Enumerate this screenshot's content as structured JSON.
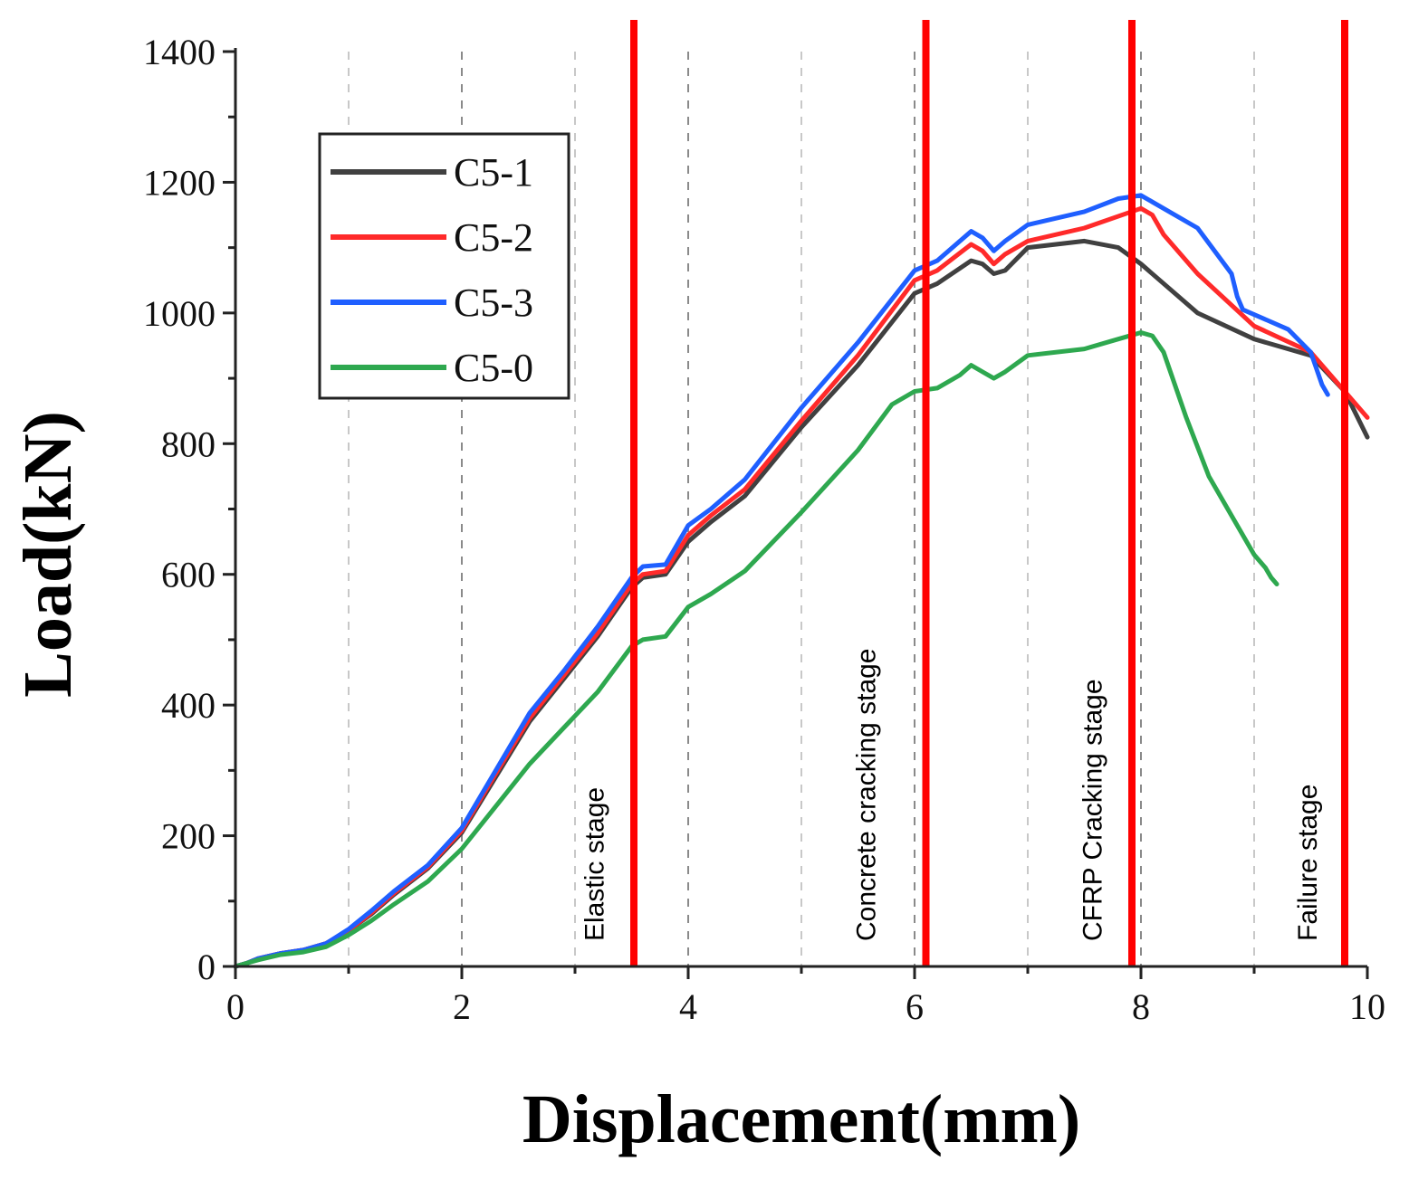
{
  "chart_data": {
    "type": "line",
    "xlabel": "Displacement(mm)",
    "ylabel": "Load(kN)",
    "xlim": [
      0,
      10
    ],
    "ylim": [
      0,
      1400
    ],
    "x_ticks": [
      "0",
      "2",
      "4",
      "6",
      "8",
      "10"
    ],
    "y_ticks": [
      "0",
      "200",
      "400",
      "600",
      "800",
      "1000",
      "1200",
      "1400"
    ],
    "grid": "vertical dashed",
    "legend_position": "top-left",
    "stage_lines": [
      {
        "x": 3.52,
        "label": "Elastic stage",
        "label_x": 3.25,
        "color": "#ff0000"
      },
      {
        "x": 6.1,
        "label": "Concrete cracking stage",
        "label_x": 5.65,
        "color": "#ff0000"
      },
      {
        "x": 7.92,
        "label": "CFRP Cracking stage",
        "label_x": 7.65,
        "color": "#ff0000"
      },
      {
        "x": 9.8,
        "label": "Failure stage",
        "label_x": 9.55,
        "color": "#ff0000"
      }
    ],
    "series": [
      {
        "name": "C5-1",
        "color": "#404040",
        "x": [
          0,
          0.1,
          0.2,
          0.4,
          0.6,
          0.8,
          1.0,
          1.2,
          1.4,
          1.7,
          2.0,
          2.3,
          2.6,
          2.9,
          3.2,
          3.5,
          3.6,
          3.8,
          4.0,
          4.2,
          4.5,
          5.0,
          5.5,
          6.0,
          6.2,
          6.5,
          6.6,
          6.7,
          6.8,
          7.0,
          7.5,
          7.8,
          8.0,
          8.5,
          9.0,
          9.5,
          9.8,
          10.0
        ],
        "y": [
          0,
          5,
          12,
          20,
          25,
          35,
          55,
          80,
          110,
          150,
          205,
          290,
          375,
          440,
          505,
          580,
          595,
          600,
          650,
          680,
          720,
          825,
          920,
          1030,
          1045,
          1080,
          1075,
          1060,
          1065,
          1100,
          1110,
          1100,
          1075,
          1000,
          960,
          935,
          880,
          810
        ]
      },
      {
        "name": "C5-2",
        "color": "#ff2a2a",
        "x": [
          0,
          0.1,
          0.2,
          0.4,
          0.6,
          0.8,
          1.0,
          1.2,
          1.4,
          1.7,
          2.0,
          2.3,
          2.6,
          2.9,
          3.2,
          3.5,
          3.6,
          3.8,
          4.0,
          4.2,
          4.5,
          5.0,
          5.5,
          6.0,
          6.2,
          6.5,
          6.6,
          6.7,
          6.8,
          7.0,
          7.5,
          8.0,
          8.1,
          8.2,
          8.5,
          9.0,
          9.5,
          9.8,
          10.0
        ],
        "y": [
          0,
          5,
          12,
          20,
          25,
          35,
          55,
          82,
          112,
          152,
          208,
          295,
          380,
          445,
          510,
          585,
          600,
          605,
          660,
          690,
          730,
          835,
          935,
          1050,
          1065,
          1105,
          1095,
          1075,
          1090,
          1110,
          1130,
          1160,
          1150,
          1120,
          1060,
          980,
          940,
          880,
          840
        ]
      },
      {
        "name": "C5-3",
        "color": "#1f5fff",
        "x": [
          0,
          0.1,
          0.2,
          0.4,
          0.6,
          0.8,
          1.0,
          1.2,
          1.4,
          1.7,
          2.0,
          2.3,
          2.6,
          2.9,
          3.2,
          3.5,
          3.6,
          3.8,
          4.0,
          4.2,
          4.5,
          5.0,
          5.5,
          6.0,
          6.2,
          6.5,
          6.6,
          6.7,
          6.8,
          7.0,
          7.5,
          7.8,
          8.0,
          8.5,
          8.8,
          8.85,
          8.9,
          9.3,
          9.5,
          9.6,
          9.65
        ],
        "y": [
          0,
          5,
          12,
          20,
          25,
          35,
          57,
          85,
          115,
          155,
          212,
          300,
          388,
          452,
          520,
          595,
          612,
          615,
          675,
          700,
          745,
          855,
          955,
          1065,
          1080,
          1125,
          1115,
          1095,
          1110,
          1135,
          1155,
          1175,
          1180,
          1130,
          1060,
          1025,
          1005,
          975,
          940,
          890,
          875
        ]
      },
      {
        "name": "C5-0",
        "color": "#2ea84f",
        "x": [
          0,
          0.1,
          0.2,
          0.4,
          0.6,
          0.8,
          1.0,
          1.2,
          1.4,
          1.7,
          2.0,
          2.3,
          2.6,
          2.9,
          3.2,
          3.5,
          3.6,
          3.8,
          4.0,
          4.2,
          4.5,
          5.0,
          5.5,
          5.8,
          6.0,
          6.2,
          6.4,
          6.5,
          6.6,
          6.7,
          6.8,
          7.0,
          7.5,
          7.8,
          8.0,
          8.1,
          8.2,
          8.4,
          8.6,
          8.8,
          9.0,
          9.1,
          9.15,
          9.2
        ],
        "y": [
          0,
          5,
          10,
          18,
          22,
          30,
          48,
          70,
          95,
          130,
          180,
          245,
          310,
          365,
          420,
          490,
          500,
          505,
          550,
          570,
          605,
          695,
          790,
          860,
          880,
          885,
          905,
          920,
          910,
          900,
          910,
          935,
          945,
          960,
          970,
          965,
          940,
          840,
          750,
          690,
          630,
          610,
          595,
          585
        ]
      }
    ]
  }
}
